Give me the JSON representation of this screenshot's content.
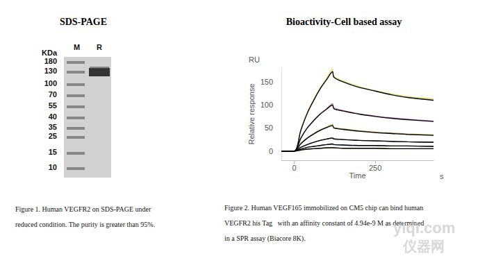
{
  "gel": {
    "title": "SDS-PAGE",
    "unit_label": "KDa",
    "lanes": [
      "M",
      "R"
    ],
    "marker_kda": [
      180,
      130,
      100,
      70,
      55,
      40,
      35,
      25,
      15,
      10
    ],
    "sample_band_kda": 130,
    "caption": [
      "Figure 1. Human VEGFR2 on SDS-PAGE under",
      "reduced condition. The purity is greater than 95%."
    ]
  },
  "chart_data": {
    "type": "line",
    "title": "Bioactivity-Cell based assay",
    "x_label": "Time",
    "x_unit": "s",
    "y_label": "Relative response",
    "y_unit": "RU",
    "x": [
      -40,
      0,
      20,
      40,
      60,
      80,
      100,
      118,
      122,
      150,
      200,
      250,
      300,
      350,
      430
    ],
    "series": [
      {
        "color": "#e8df6a",
        "values": [
          0,
          0,
          44,
          84,
          112,
          137,
          158,
          178,
          162,
          152,
          140,
          131,
          124,
          118,
          113
        ]
      },
      {
        "color": "#d98bd9",
        "values": [
          0,
          0,
          27,
          50,
          67,
          81,
          92,
          103,
          94,
          88,
          81,
          76,
          72,
          69,
          65
        ]
      },
      {
        "color": "#b5a24a",
        "values": [
          0,
          0,
          15,
          28,
          38,
          46,
          52,
          57,
          51,
          48,
          44,
          41,
          39,
          37,
          35
        ]
      },
      {
        "color": "#a070c0",
        "values": [
          0,
          0,
          8,
          14,
          19,
          23,
          26,
          29,
          27,
          25,
          23,
          22,
          21,
          20,
          19
        ]
      },
      {
        "color": "#8090b0",
        "values": [
          0,
          0,
          4,
          8,
          10,
          12,
          14,
          16,
          14,
          13,
          12,
          12,
          11,
          11,
          10
        ]
      },
      {
        "color": "#e0a050",
        "values": [
          0,
          0,
          2,
          4,
          5,
          6,
          7,
          8,
          7,
          6,
          6,
          6,
          5,
          5,
          5
        ]
      },
      {
        "color": "#000000",
        "values": [
          0,
          0,
          45,
          82,
          110,
          135,
          155,
          172,
          160,
          150,
          138,
          130,
          122,
          116,
          110
        ]
      },
      {
        "color": "#000000",
        "values": [
          0,
          0,
          28,
          50,
          66,
          80,
          91,
          100,
          92,
          87,
          80,
          75,
          71,
          68,
          64
        ]
      },
      {
        "color": "#000000",
        "values": [
          0,
          0,
          16,
          28,
          37,
          45,
          51,
          55,
          50,
          47,
          43,
          40,
          38,
          36,
          34
        ]
      },
      {
        "color": "#000000",
        "values": [
          0,
          0,
          8,
          14,
          19,
          23,
          26,
          28,
          26,
          25,
          23,
          22,
          21,
          20,
          19
        ]
      },
      {
        "color": "#000000",
        "values": [
          0,
          0,
          4,
          8,
          10,
          12,
          14,
          15,
          14,
          13,
          12,
          12,
          11,
          11,
          10
        ]
      },
      {
        "color": "#000000",
        "values": [
          0,
          0,
          2,
          4,
          5,
          6,
          7,
          7,
          7,
          6,
          6,
          6,
          5,
          5,
          5
        ]
      }
    ],
    "xlim": [
      -40,
      430
    ],
    "ylim": [
      -20,
      180
    ],
    "xticks": [
      0,
      250
    ],
    "yticks": [
      0,
      50,
      100,
      150
    ],
    "grid": false,
    "line_style": "solid",
    "caption": [
      "Figure 2. Human VEGF165 immobilized on CM5 chip can bind human",
      "VEGFR2 his Tag   with an affinity constant of 4.94e-9 M as determined",
      "in a SPR assay (Biacore 8K)."
    ]
  },
  "watermark": [
    "yiqi.com",
    "仪器网"
  ]
}
